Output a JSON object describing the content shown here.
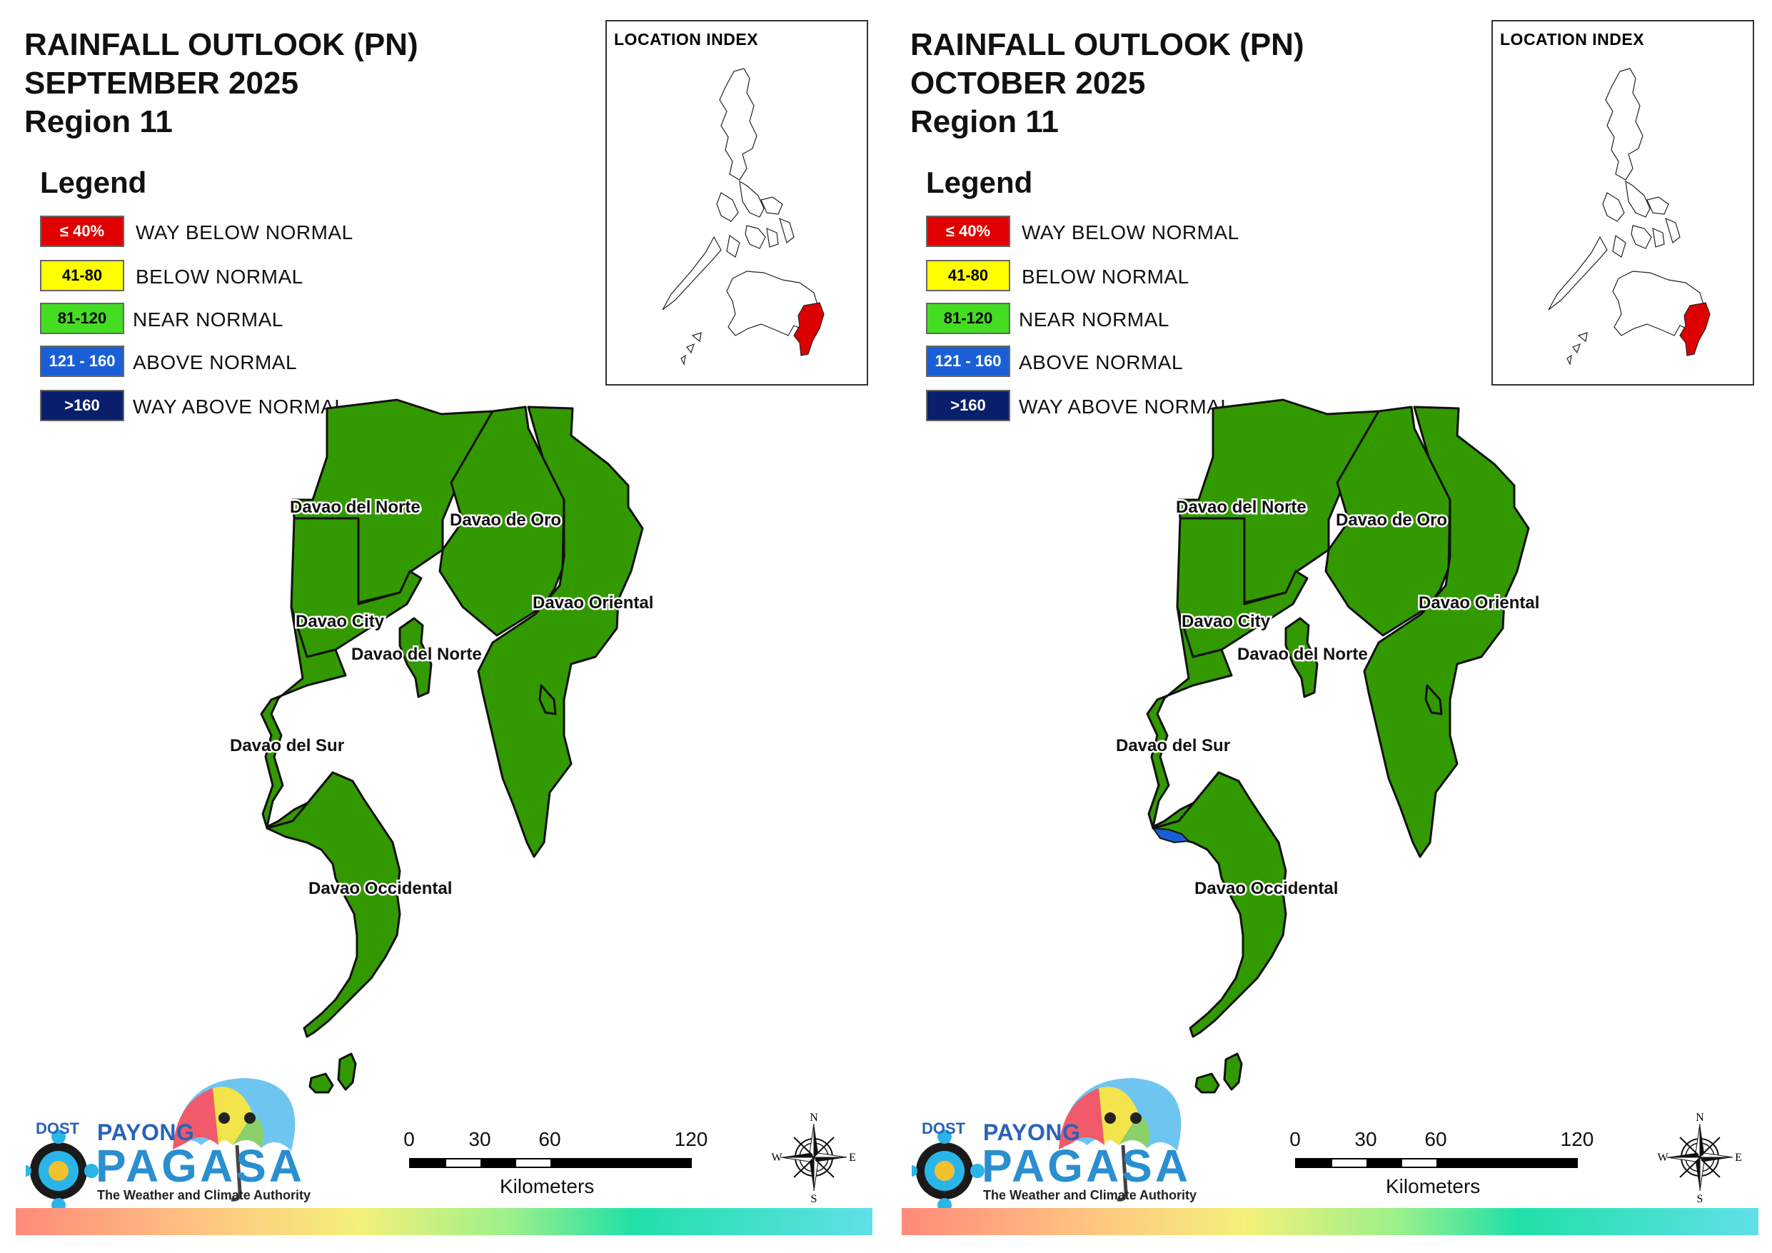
{
  "panels": [
    {
      "title_line1": "RAINFALL OUTLOOK (PN)",
      "title_line2": "SEPTEMBER 2025",
      "title_line3": "Region 11",
      "legend_title": "Legend",
      "inset_title": "LOCATION INDEX",
      "legend": [
        {
          "range": "≤ 40%",
          "label": "WAY BELOW NORMAL",
          "color": "#e00000",
          "text_color": "#ffffff"
        },
        {
          "range": "41-80",
          "label": "BELOW NORMAL",
          "color": "#ffff00",
          "text_color": "#000000"
        },
        {
          "range": "81-120",
          "label": "NEAR NORMAL",
          "color": "#44dd22",
          "text_color": "#000000"
        },
        {
          "range": "121 - 160",
          "label": "ABOVE NORMAL",
          "color": "#1a5fd6",
          "text_color": "#ffffff"
        },
        {
          "range": ">160",
          "label": "WAY ABOVE NORMAL",
          "color": "#0a1f6b",
          "text_color": "#ffffff"
        }
      ],
      "region_labels": [
        "Davao del Norte",
        "Davao de Oro",
        "Davao Oriental",
        "Davao City",
        "Davao del Norte",
        "Davao del Sur",
        "Davao Occidental"
      ],
      "region_fill": "#339900",
      "above_normal_patch": false,
      "logo": {
        "dost": "DOST",
        "payong": "PAYONG",
        "pagasa": "PAGASA",
        "tagline": "The Weather and Climate Authority"
      },
      "scale": {
        "ticks": [
          "0",
          "30",
          "60",
          "120"
        ],
        "unit": "Kilometers"
      },
      "compass": {
        "n": "N",
        "s": "S",
        "e": "E",
        "w": "W"
      }
    },
    {
      "title_line1": "RAINFALL OUTLOOK (PN)",
      "title_line2": "OCTOBER 2025",
      "title_line3": "Region 11",
      "legend_title": "Legend",
      "inset_title": "LOCATION INDEX",
      "legend": [
        {
          "range": "≤ 40%",
          "label": "WAY BELOW NORMAL",
          "color": "#e00000",
          "text_color": "#ffffff"
        },
        {
          "range": "41-80",
          "label": "BELOW NORMAL",
          "color": "#ffff00",
          "text_color": "#000000"
        },
        {
          "range": "81-120",
          "label": "NEAR NORMAL",
          "color": "#44dd22",
          "text_color": "#000000"
        },
        {
          "range": "121 - 160",
          "label": "ABOVE NORMAL",
          "color": "#1a5fd6",
          "text_color": "#ffffff"
        },
        {
          "range": ">160",
          "label": "WAY ABOVE NORMAL",
          "color": "#0a1f6b",
          "text_color": "#ffffff"
        }
      ],
      "region_labels": [
        "Davao del Norte",
        "Davao de Oro",
        "Davao Oriental",
        "Davao City",
        "Davao del Norte",
        "Davao del Sur",
        "Davao Occidental"
      ],
      "region_fill": "#339900",
      "above_normal_patch": true,
      "logo": {
        "dost": "DOST",
        "payong": "PAYONG",
        "pagasa": "PAGASA",
        "tagline": "The Weather and Climate Authority"
      },
      "scale": {
        "ticks": [
          "0",
          "30",
          "60",
          "120"
        ],
        "unit": "Kilometers"
      },
      "compass": {
        "n": "N",
        "s": "S",
        "e": "E",
        "w": "W"
      }
    }
  ]
}
